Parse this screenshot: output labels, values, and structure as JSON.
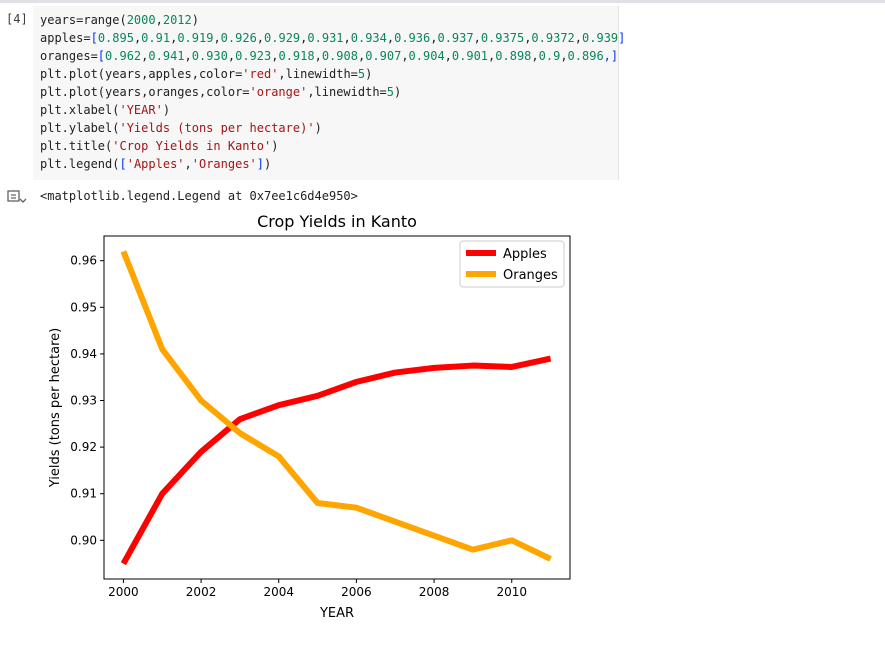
{
  "cell": {
    "execution_count": "[4]",
    "code_lines": [
      [
        {
          "t": "years=range(",
          "c": "d"
        },
        {
          "t": "2000",
          "c": "n"
        },
        {
          "t": ",",
          "c": "d"
        },
        {
          "t": "2012",
          "c": "n"
        },
        {
          "t": ")",
          "c": "d"
        }
      ],
      [
        {
          "t": "apples=",
          "c": "d"
        },
        {
          "t": "[",
          "c": "b"
        },
        {
          "t": "0.895",
          "c": "n"
        },
        {
          "t": ",",
          "c": "d"
        },
        {
          "t": "0.91",
          "c": "n"
        },
        {
          "t": ",",
          "c": "d"
        },
        {
          "t": "0.919",
          "c": "n"
        },
        {
          "t": ",",
          "c": "d"
        },
        {
          "t": "0.926",
          "c": "n"
        },
        {
          "t": ",",
          "c": "d"
        },
        {
          "t": "0.929",
          "c": "n"
        },
        {
          "t": ",",
          "c": "d"
        },
        {
          "t": "0.931",
          "c": "n"
        },
        {
          "t": ",",
          "c": "d"
        },
        {
          "t": "0.934",
          "c": "n"
        },
        {
          "t": ",",
          "c": "d"
        },
        {
          "t": "0.936",
          "c": "n"
        },
        {
          "t": ",",
          "c": "d"
        },
        {
          "t": "0.937",
          "c": "n"
        },
        {
          "t": ",",
          "c": "d"
        },
        {
          "t": "0.9375",
          "c": "n"
        },
        {
          "t": ",",
          "c": "d"
        },
        {
          "t": "0.9372",
          "c": "n"
        },
        {
          "t": ",",
          "c": "d"
        },
        {
          "t": "0.939",
          "c": "n"
        },
        {
          "t": "]",
          "c": "b"
        }
      ],
      [
        {
          "t": "oranges=",
          "c": "d"
        },
        {
          "t": "[",
          "c": "b"
        },
        {
          "t": "0.962",
          "c": "n"
        },
        {
          "t": ",",
          "c": "d"
        },
        {
          "t": "0.941",
          "c": "n"
        },
        {
          "t": ",",
          "c": "d"
        },
        {
          "t": "0.930",
          "c": "n"
        },
        {
          "t": ",",
          "c": "d"
        },
        {
          "t": "0.923",
          "c": "n"
        },
        {
          "t": ",",
          "c": "d"
        },
        {
          "t": "0.918",
          "c": "n"
        },
        {
          "t": ",",
          "c": "d"
        },
        {
          "t": "0.908",
          "c": "n"
        },
        {
          "t": ",",
          "c": "d"
        },
        {
          "t": "0.907",
          "c": "n"
        },
        {
          "t": ",",
          "c": "d"
        },
        {
          "t": "0.904",
          "c": "n"
        },
        {
          "t": ",",
          "c": "d"
        },
        {
          "t": "0.901",
          "c": "n"
        },
        {
          "t": ",",
          "c": "d"
        },
        {
          "t": "0.898",
          "c": "n"
        },
        {
          "t": ",",
          "c": "d"
        },
        {
          "t": "0.9",
          "c": "n"
        },
        {
          "t": ",",
          "c": "d"
        },
        {
          "t": "0.896",
          "c": "n"
        },
        {
          "t": ",]",
          "c": "b"
        }
      ],
      [
        {
          "t": "plt.plot(years,apples,color=",
          "c": "d"
        },
        {
          "t": "'red'",
          "c": "s"
        },
        {
          "t": ",linewidth=",
          "c": "d"
        },
        {
          "t": "5",
          "c": "n"
        },
        {
          "t": ")",
          "c": "d"
        }
      ],
      [
        {
          "t": "plt.plot(years,oranges,color=",
          "c": "d"
        },
        {
          "t": "'orange'",
          "c": "s"
        },
        {
          "t": ",linewidth=",
          "c": "d"
        },
        {
          "t": "5",
          "c": "n"
        },
        {
          "t": ")",
          "c": "d"
        }
      ],
      [
        {
          "t": "plt.xlabel(",
          "c": "d"
        },
        {
          "t": "'YEAR'",
          "c": "s"
        },
        {
          "t": ")",
          "c": "d"
        }
      ],
      [
        {
          "t": "plt.ylabel(",
          "c": "d"
        },
        {
          "t": "'Yields (tons per hectare)'",
          "c": "s"
        },
        {
          "t": ")",
          "c": "d"
        }
      ],
      [
        {
          "t": "plt.title(",
          "c": "d"
        },
        {
          "t": "'Crop Yields in Kanto'",
          "c": "s"
        },
        {
          "t": ")",
          "c": "d"
        }
      ],
      [
        {
          "t": "plt.legend(",
          "c": "d"
        },
        {
          "t": "[",
          "c": "b"
        },
        {
          "t": "'Apples'",
          "c": "s"
        },
        {
          "t": ",",
          "c": "d"
        },
        {
          "t": "'Oranges'",
          "c": "s"
        },
        {
          "t": "]",
          "c": "b"
        },
        {
          "t": ")",
          "c": "d"
        }
      ]
    ]
  },
  "output": {
    "icon": "output-toggle-icon",
    "text": "<matplotlib.legend.Legend at 0x7ee1c6d4e950>"
  },
  "chart_data": {
    "type": "line",
    "title": "Crop Yields in Kanto",
    "xlabel": "YEAR",
    "ylabel": "Yields (tons per hectare)",
    "x": [
      2000,
      2001,
      2002,
      2003,
      2004,
      2005,
      2006,
      2007,
      2008,
      2009,
      2010,
      2011
    ],
    "series": [
      {
        "name": "Apples",
        "color": "#ff0000",
        "values": [
          0.895,
          0.91,
          0.919,
          0.926,
          0.929,
          0.931,
          0.934,
          0.936,
          0.937,
          0.9375,
          0.9372,
          0.939
        ]
      },
      {
        "name": "Oranges",
        "color": "#ffa500",
        "values": [
          0.962,
          0.941,
          0.93,
          0.923,
          0.918,
          0.908,
          0.907,
          0.904,
          0.901,
          0.898,
          0.9,
          0.896
        ]
      }
    ],
    "xlim": [
      1999.5,
      2011.5
    ],
    "ylim": [
      0.8917,
      0.9653
    ],
    "xticks": [
      2000,
      2002,
      2004,
      2006,
      2008,
      2010
    ],
    "yticks": [
      0.9,
      0.91,
      0.92,
      0.93,
      0.94,
      0.95,
      0.96
    ],
    "ytick_labels": [
      "0.90",
      "0.91",
      "0.92",
      "0.93",
      "0.94",
      "0.95",
      "0.96"
    ],
    "legend_position": "top-right",
    "grid": false
  }
}
